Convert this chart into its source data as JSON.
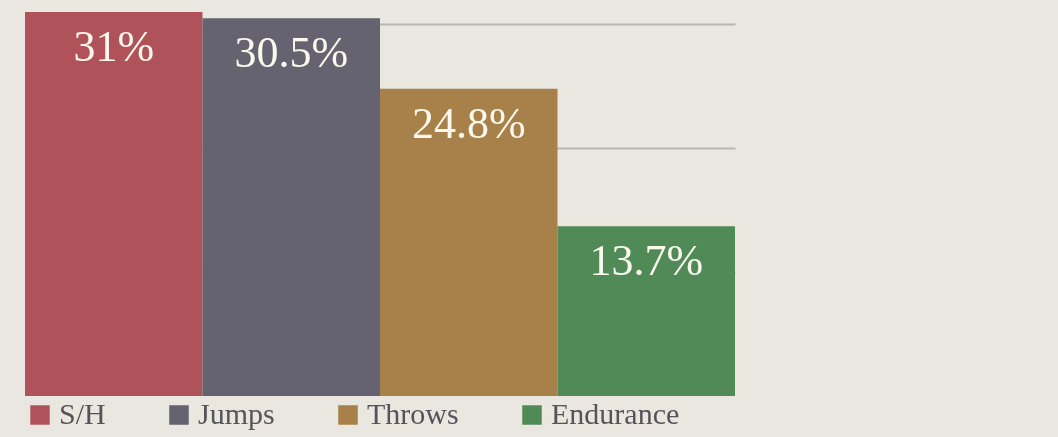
{
  "chart_data": {
    "type": "bar",
    "categories": [
      null
    ],
    "series": [
      {
        "name": "S/H",
        "color": "#b0525a",
        "values": [
          31
        ],
        "value_labels": [
          "31%"
        ]
      },
      {
        "name": "Jumps",
        "color": "#64636f",
        "values": [
          30.5
        ],
        "value_labels": [
          "30.5%"
        ]
      },
      {
        "name": "Throws",
        "color": "#a88049",
        "values": [
          24.8
        ],
        "value_labels": [
          "24.8%"
        ]
      },
      {
        "name": "Endurance",
        "color": "#4f8a57",
        "values": [
          13.7
        ],
        "value_labels": [
          "13.7%"
        ]
      }
    ],
    "yticks": [
      {
        "value": 10,
        "label": null
      },
      {
        "value": 20,
        "label": null
      },
      {
        "value": 30,
        "label": null
      }
    ],
    "grid": "y",
    "legend": "bottom"
  }
}
